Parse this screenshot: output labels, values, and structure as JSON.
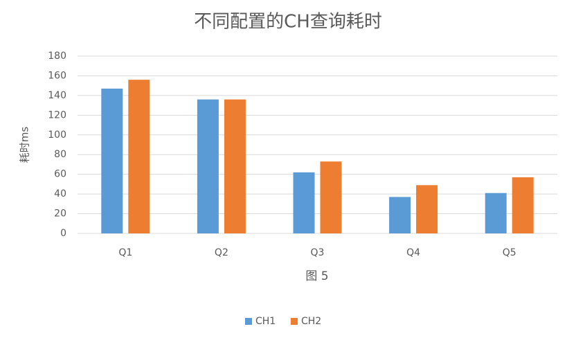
{
  "chart_data": {
    "type": "bar",
    "title": "不同配置的CH查询耗时",
    "y_label": "耗时ms",
    "x_label": "图 5",
    "categories": [
      "Q1",
      "Q2",
      "Q3",
      "Q4",
      "Q5"
    ],
    "series": [
      {
        "name": "CH1",
        "color": "#5b9bd5",
        "values": [
          147,
          136,
          62,
          37,
          41
        ]
      },
      {
        "name": "CH2",
        "color": "#ed7d31",
        "values": [
          156,
          136,
          73,
          49,
          57
        ]
      }
    ],
    "ylim": [
      0,
      180
    ],
    "yticks": [
      0,
      20,
      40,
      60,
      80,
      100,
      120,
      140,
      160,
      180
    ],
    "grid": true,
    "legend": "bottom"
  }
}
